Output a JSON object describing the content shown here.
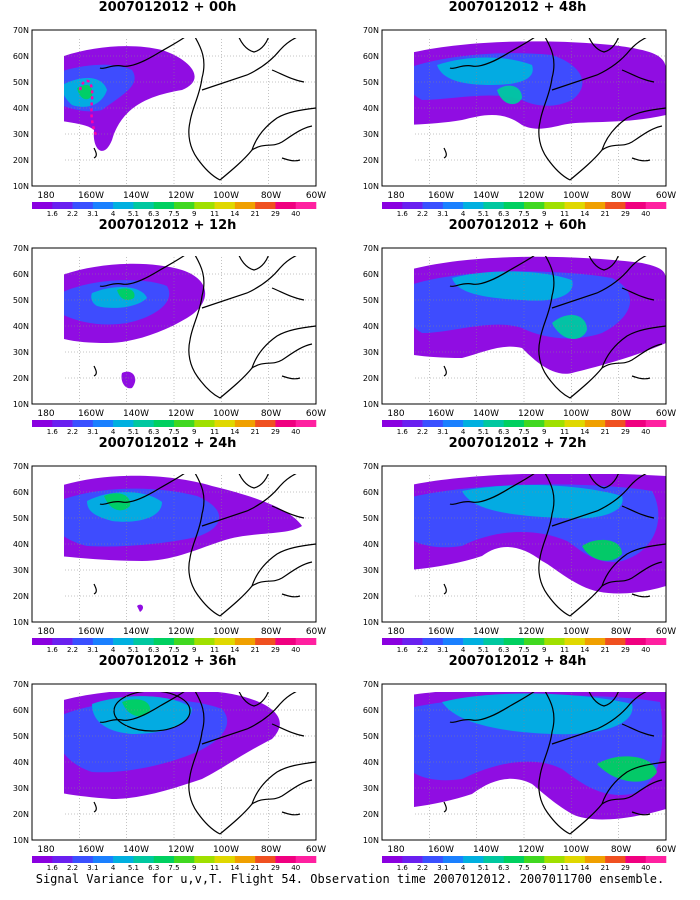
{
  "panels": [
    {
      "id": "p00",
      "title": "2007012012 + 00h"
    },
    {
      "id": "p48",
      "title": "2007012012 + 48h"
    },
    {
      "id": "p12",
      "title": "2007012012 + 12h"
    },
    {
      "id": "p60",
      "title": "2007012012 + 60h"
    },
    {
      "id": "p24",
      "title": "2007012012 + 24h"
    },
    {
      "id": "p72",
      "title": "2007012012 + 72h"
    },
    {
      "id": "p36",
      "title": "2007012012 + 36h"
    },
    {
      "id": "p84",
      "title": "2007012012 + 84h"
    }
  ],
  "lat_labels": [
    "70N",
    "60N",
    "50N",
    "40N",
    "30N",
    "20N",
    "10N"
  ],
  "lon_labels": [
    "180",
    "160W",
    "140W",
    "120W",
    "100W",
    "80W",
    "60W"
  ],
  "colorbar": {
    "labels": [
      "1.6",
      "2.2",
      "3.1",
      "4",
      "5.1",
      "6.3",
      "7.5",
      "9",
      "11",
      "14",
      "21",
      "29",
      "40"
    ],
    "colors": [
      "#8a00e0",
      "#6a20f0",
      "#3a50ff",
      "#1a80ff",
      "#00b0e0",
      "#00c8a0",
      "#00d060",
      "#40d820",
      "#a0e000",
      "#e0d800",
      "#f0a000",
      "#f05020",
      "#f00080",
      "#ff20a0"
    ]
  },
  "footer": "Signal Variance for u,v,T. Flight 54. Observation time 2007012012. 2007011700 ensemble."
}
